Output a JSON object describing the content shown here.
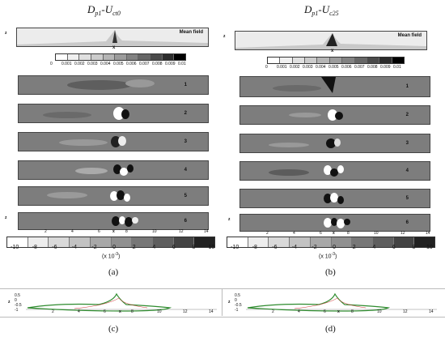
{
  "left_title": {
    "main": "D",
    "s1": "p1",
    "dash": "-U",
    "s2": "ct0"
  },
  "right_title": {
    "main": "D",
    "s1": "p1",
    "dash": "-U",
    "s2": "c25"
  },
  "mean_label": "Mean field",
  "axis": {
    "z": "z",
    "x": "x",
    "z_ticks": [
      "0.5",
      "0",
      "-0.5",
      "-1"
    ]
  },
  "x_ticks": [
    "0",
    "2",
    "4",
    "6",
    "8",
    "10",
    "12",
    "14"
  ],
  "mode_labels": [
    "1",
    "2",
    "3",
    "4",
    "5",
    "6"
  ],
  "small_colorbar_ticks": [
    "0",
    "0.001",
    "0.002",
    "0.003",
    "0.004",
    "0.005",
    "0.006",
    "0.007",
    "0.008",
    "0.009",
    "0.01"
  ],
  "big_colorbar_ticks": [
    "-10",
    "-8",
    "-6",
    "-4",
    "-2",
    "0",
    "2",
    "4",
    "6",
    "8",
    "10"
  ],
  "multiplier": "(x 10",
  "multiplier_exp": "-3",
  "multiplier_close": ")",
  "captions": [
    "(a)",
    "(b)",
    "(c)",
    "(d)"
  ],
  "colors": {
    "panel": "#7d7d7d",
    "mean_bg": "#ececec",
    "contour": "#2e8b2e"
  }
}
